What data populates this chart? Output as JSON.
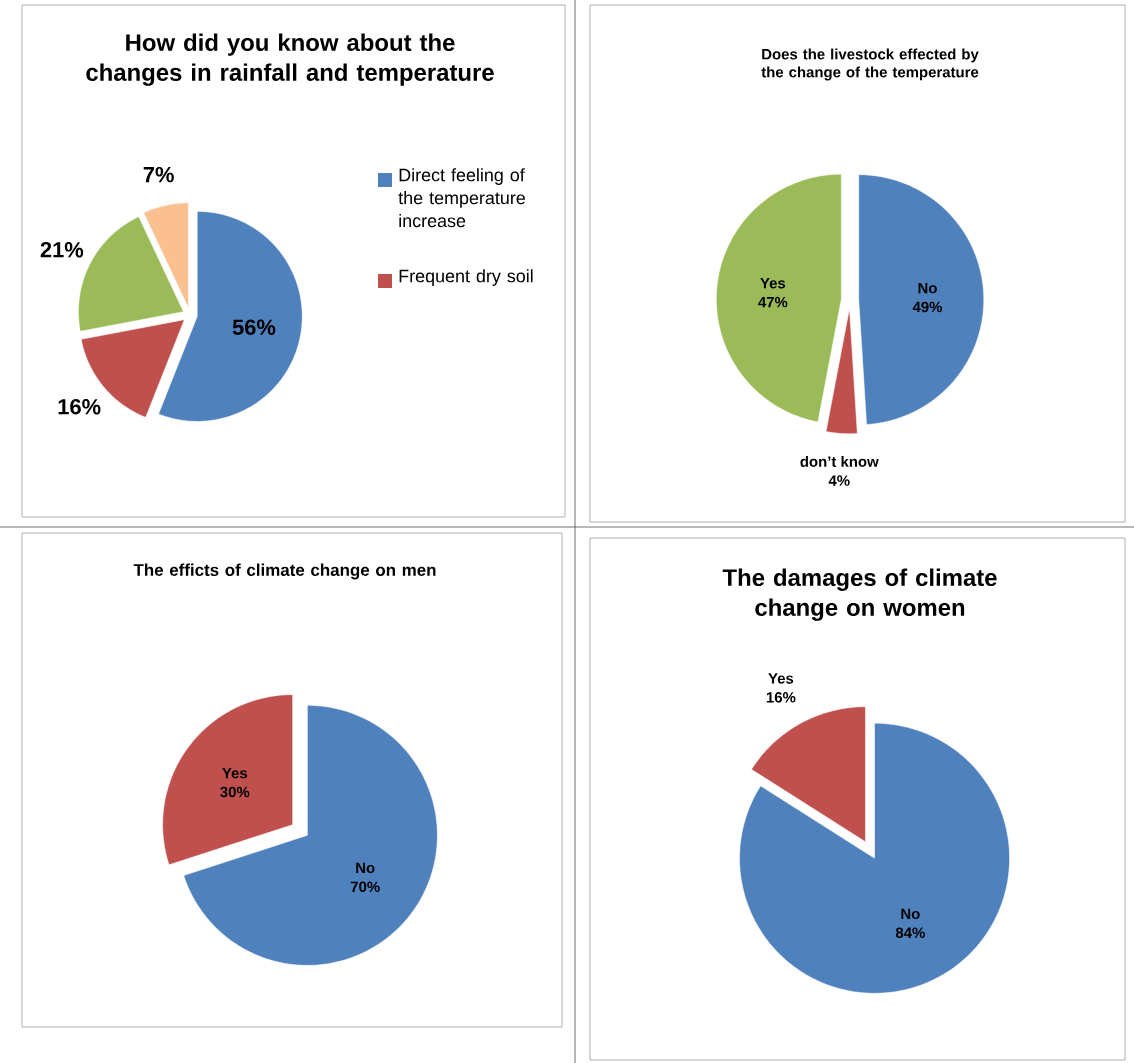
{
  "chart_data": [
    {
      "type": "pie",
      "title": "How did you know about the changes in rainfall and temperature",
      "categories": [
        "Direct feeling of the temperature increase",
        "Frequent dry soil",
        null,
        null
      ],
      "values": [
        56,
        16,
        21,
        7
      ],
      "value_labels": [
        "56%",
        "16%",
        "21%",
        "7%"
      ],
      "colors": [
        "#4f81bd",
        "#c0504d",
        "#9bbb59",
        "#fac090"
      ],
      "legend": "right"
    },
    {
      "type": "pie",
      "title": "Does the livestock  effected by the change of the temperature",
      "categories": [
        "No",
        "don’t know",
        "Yes"
      ],
      "values": [
        49,
        4,
        47
      ],
      "value_labels": [
        "49%",
        "4%",
        "47%"
      ],
      "colors": [
        "#4f81bd",
        "#c0504d",
        "#9bbb59"
      ]
    },
    {
      "type": "pie",
      "title": "The efficts of climate change on men",
      "categories": [
        "No",
        "Yes"
      ],
      "values": [
        70,
        30
      ],
      "value_labels": [
        "70%",
        "30%"
      ],
      "colors": [
        "#4f81bd",
        "#c0504d"
      ]
    },
    {
      "type": "pie",
      "title": "The damages of climate change on women",
      "categories": [
        "No",
        "Yes"
      ],
      "values": [
        84,
        16
      ],
      "value_labels": [
        "84%",
        "16%"
      ],
      "colors": [
        "#4f81bd",
        "#c0504d"
      ]
    }
  ]
}
